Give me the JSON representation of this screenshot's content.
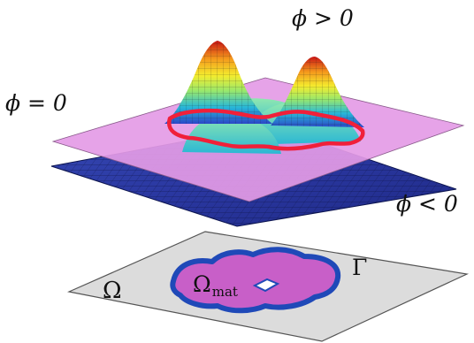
{
  "labels": {
    "phi_positive": "ϕ > 0",
    "phi_zero": "ϕ = 0",
    "phi_negative": "ϕ < 0",
    "domain": "Ω",
    "material_domain_symbol": "Ω",
    "material_domain_subscript": "mat",
    "boundary": "Γ"
  },
  "colors": {
    "zero_plane": "#e49be6",
    "lower_surface": "#2a3aa8",
    "zero_contour": "#f0203a",
    "domain_plane": "#dcdcdc",
    "material_fill": "#c85fc8",
    "boundary_stroke": "#1f49b8"
  }
}
